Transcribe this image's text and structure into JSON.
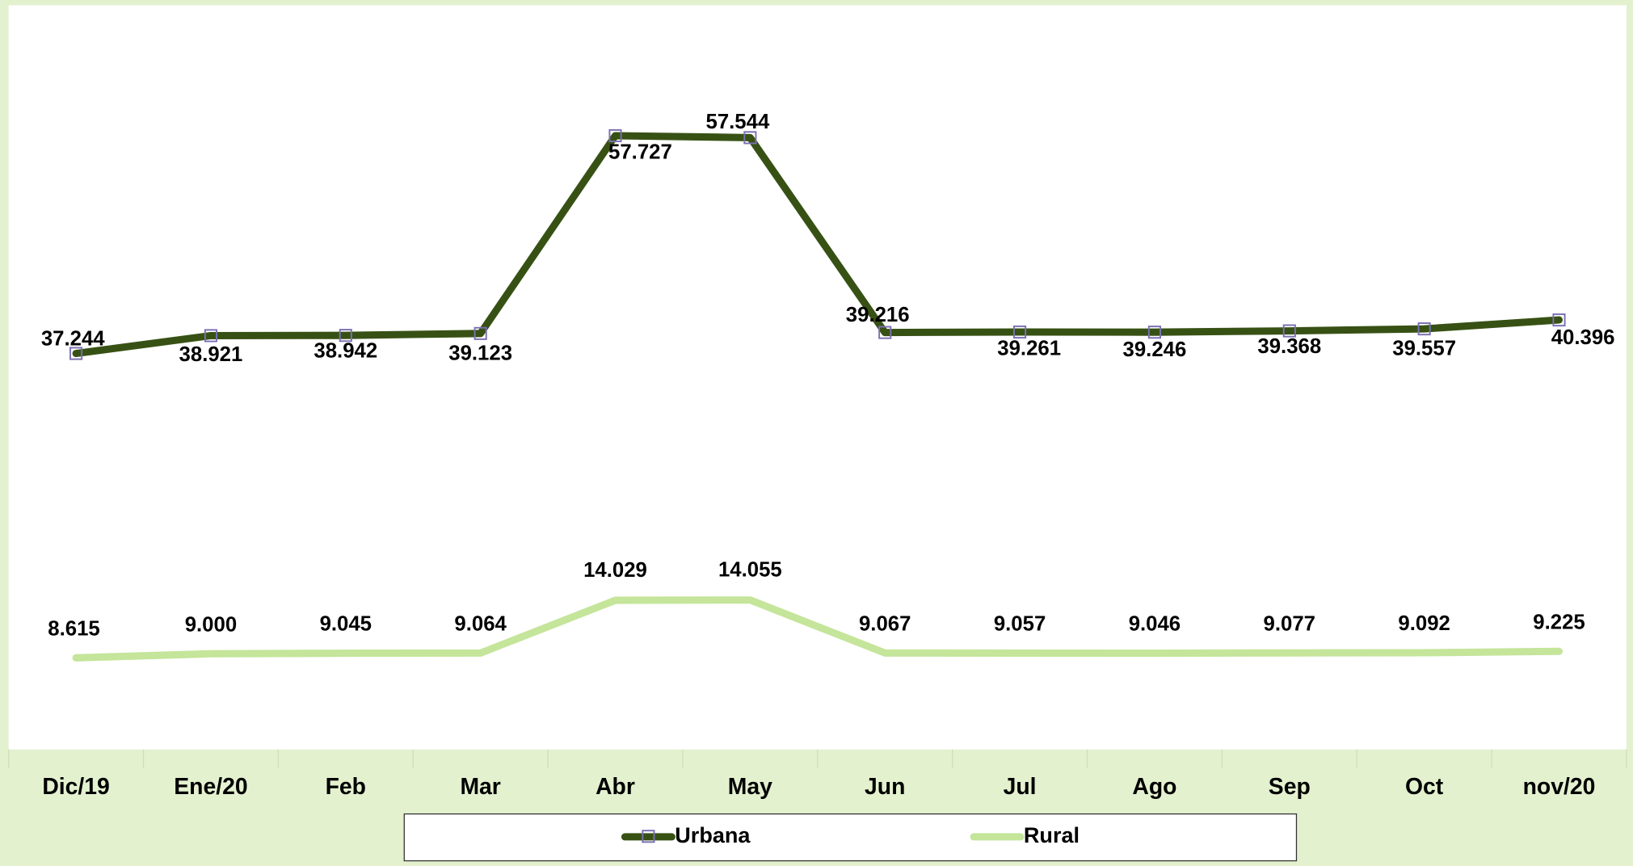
{
  "chart_data": {
    "type": "line",
    "categories": [
      "Dic/19",
      "Ene/20",
      "Feb",
      "Mar",
      "Abr",
      "May",
      "Jun",
      "Jul",
      "Ago",
      "Sep",
      "Oct",
      "nov/20"
    ],
    "series": [
      {
        "name": "Urbana",
        "color": "#375114",
        "marker_color": "#7b70b3",
        "values": [
          37244,
          38921,
          38942,
          39123,
          57727,
          57544,
          39216,
          39261,
          39246,
          39368,
          39557,
          40396
        ],
        "value_labels": [
          "37.244",
          "38.921",
          "38.942",
          "39.123",
          "57.727",
          "57.544",
          "39.216",
          "39.261",
          "39.246",
          "39.368",
          "39.557",
          "40.396"
        ]
      },
      {
        "name": "Rural",
        "color": "#c4e59a",
        "values": [
          8615,
          9000,
          9045,
          9064,
          14029,
          14055,
          9067,
          9057,
          9046,
          9077,
          9092,
          9225
        ],
        "value_labels": [
          "8.615",
          "9.000",
          "9.045",
          "9.064",
          "14.029",
          "14.055",
          "9.067",
          "9.057",
          "9.046",
          "9.077",
          "9.092",
          "9.225"
        ]
      }
    ],
    "ylim": [
      0,
      70000
    ]
  }
}
